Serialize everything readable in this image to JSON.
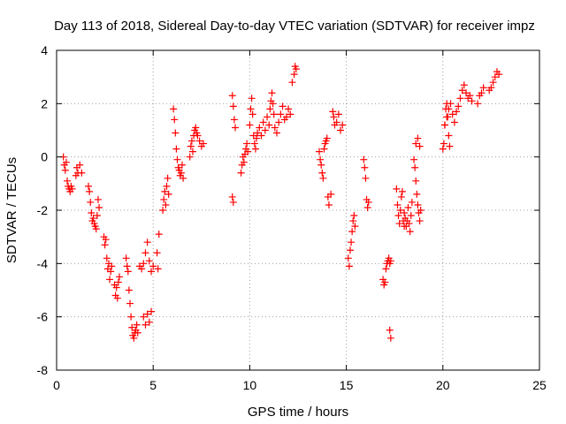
{
  "chart_data": {
    "type": "scatter",
    "title": "Day 113 of 2018, Sidereal Day-to-day VTEC variation (SDTVAR) for receiver impz",
    "xlabel": "GPS time / hours",
    "ylabel": "SDTVAR / TECUs",
    "xlim": [
      0,
      25
    ],
    "ylim": [
      -8,
      4
    ],
    "x_ticks": [
      0,
      5,
      10,
      15,
      20,
      25
    ],
    "y_ticks": [
      -8,
      -6,
      -4,
      -2,
      0,
      2,
      4
    ],
    "x_tick_labels": [
      "0",
      "5",
      "10",
      "15",
      "20",
      "25"
    ],
    "y_tick_labels": [
      "-8",
      "-6",
      "-4",
      "-2",
      "0",
      "2",
      "4"
    ],
    "grid": true,
    "marker": "+",
    "color": "#ff0000",
    "series": [
      {
        "name": "SDTVAR",
        "x": [
          0.35,
          0.4,
          0.45,
          0.5,
          0.55,
          0.6,
          0.65,
          0.7,
          0.75,
          0.8,
          1.0,
          1.05,
          1.1,
          1.2,
          1.3,
          1.65,
          1.7,
          1.75,
          1.8,
          1.85,
          1.9,
          1.95,
          2.0,
          2.05,
          2.1,
          2.15,
          2.2,
          2.45,
          2.5,
          2.55,
          2.6,
          2.65,
          2.7,
          2.75,
          2.8,
          2.85,
          3.0,
          3.05,
          3.1,
          3.15,
          3.2,
          3.25,
          3.6,
          3.65,
          3.7,
          3.75,
          3.8,
          3.85,
          3.9,
          3.95,
          4.0,
          4.05,
          4.1,
          4.15,
          4.2,
          4.3,
          4.4,
          4.5,
          4.6,
          4.7,
          4.8,
          4.9,
          5.0,
          4.5,
          4.6,
          4.7,
          4.8,
          4.9,
          5.2,
          5.25,
          5.3,
          5.5,
          5.55,
          5.6,
          5.65,
          5.7,
          5.75,
          5.8,
          6.05,
          6.1,
          6.15,
          6.2,
          6.25,
          6.3,
          6.35,
          6.4,
          6.45,
          6.5,
          6.55,
          6.9,
          6.95,
          7.0,
          7.05,
          7.1,
          7.15,
          7.2,
          7.25,
          7.3,
          7.4,
          7.5,
          7.6,
          9.1,
          9.15,
          9.2,
          9.25,
          9.1,
          9.15,
          9.55,
          9.6,
          9.65,
          9.7,
          9.75,
          9.8,
          9.85,
          9.9,
          10.0,
          10.05,
          10.1,
          10.15,
          10.2,
          10.25,
          10.3,
          10.35,
          10.4,
          10.5,
          10.6,
          10.7,
          10.8,
          10.9,
          11.0,
          11.05,
          11.1,
          11.15,
          11.2,
          11.25,
          11.3,
          11.4,
          11.5,
          11.6,
          11.7,
          11.8,
          11.9,
          12.0,
          12.1,
          12.2,
          12.3,
          12.35,
          12.4,
          13.6,
          13.65,
          13.7,
          13.75,
          13.8,
          13.85,
          13.9,
          13.95,
          14.0,
          14.05,
          14.1,
          14.2,
          14.3,
          14.35,
          14.4,
          14.5,
          14.6,
          14.7,
          14.8,
          15.1,
          15.15,
          15.2,
          15.25,
          15.3,
          15.35,
          15.4,
          15.45,
          15.9,
          15.95,
          16.0,
          16.05,
          16.1,
          16.15,
          16.9,
          16.95,
          17.0,
          17.05,
          17.1,
          17.15,
          17.2,
          17.25,
          17.3,
          17.25,
          17.3,
          17.6,
          17.65,
          17.7,
          17.75,
          17.8,
          17.85,
          17.9,
          17.95,
          18.0,
          18.0,
          18.05,
          18.1,
          18.15,
          18.2,
          18.25,
          18.3,
          18.35,
          18.4,
          18.5,
          18.55,
          18.6,
          18.65,
          18.7,
          18.75,
          18.8,
          18.85,
          18.6,
          18.7,
          18.8,
          20.0,
          20.05,
          20.1,
          20.15,
          20.2,
          20.25,
          20.3,
          20.35,
          20.1,
          20.2,
          20.3,
          20.4,
          20.5,
          20.6,
          20.7,
          20.8,
          20.9,
          21.0,
          21.1,
          21.2,
          21.3,
          21.4,
          21.5,
          21.8,
          21.9,
          22.0,
          22.1,
          22.4,
          22.5,
          22.6,
          22.7,
          22.8,
          22.9
        ],
        "y": [
          0.0,
          -0.3,
          -0.5,
          -0.2,
          -0.9,
          -1.1,
          -1.2,
          -1.3,
          -1.1,
          -1.2,
          -0.7,
          -0.4,
          -0.6,
          -0.3,
          -0.6,
          -1.1,
          -1.3,
          -1.7,
          -2.1,
          -2.4,
          -2.3,
          -2.5,
          -2.6,
          -2.7,
          -2.2,
          -1.6,
          -1.9,
          -3.0,
          -3.3,
          -3.1,
          -3.8,
          -4.2,
          -4.0,
          -4.6,
          -4.3,
          -4.1,
          -4.8,
          -5.2,
          -4.9,
          -5.3,
          -4.7,
          -4.5,
          -3.8,
          -4.1,
          -4.3,
          -5.0,
          -5.5,
          -6.0,
          -6.4,
          -6.7,
          -6.8,
          -6.6,
          -6.5,
          -6.3,
          -6.6,
          -4.1,
          -4.2,
          -4.0,
          -3.6,
          -3.2,
          -3.9,
          -4.3,
          -4.1,
          -6.0,
          -6.3,
          -5.9,
          -6.2,
          -5.8,
          -3.6,
          -4.2,
          -2.9,
          -2.0,
          -1.6,
          -1.3,
          -1.8,
          -1.1,
          -0.8,
          -1.4,
          1.8,
          1.4,
          0.9,
          0.3,
          -0.1,
          -0.4,
          -0.5,
          -0.7,
          -0.6,
          -0.3,
          -0.8,
          0.0,
          0.4,
          0.6,
          0.2,
          0.8,
          1.0,
          1.1,
          0.9,
          0.8,
          0.6,
          0.4,
          0.5,
          2.3,
          1.9,
          1.4,
          1.1,
          -1.5,
          -1.7,
          -0.6,
          -0.3,
          0.0,
          -0.2,
          0.1,
          0.3,
          0.5,
          0.2,
          1.2,
          1.8,
          2.2,
          1.6,
          0.8,
          0.5,
          0.3,
          0.7,
          0.9,
          1.1,
          0.8,
          1.3,
          1.0,
          1.5,
          1.2,
          1.8,
          2.1,
          2.4,
          2.0,
          1.6,
          1.1,
          0.9,
          1.3,
          1.6,
          1.9,
          1.4,
          1.5,
          1.8,
          1.6,
          2.8,
          3.1,
          3.4,
          3.3,
          0.2,
          -0.1,
          -0.3,
          -0.6,
          -0.8,
          0.3,
          0.5,
          0.6,
          0.7,
          -1.5,
          -1.8,
          -1.4,
          1.7,
          1.5,
          1.2,
          1.3,
          1.6,
          1.0,
          1.2,
          -3.8,
          -4.1,
          -3.5,
          -3.2,
          -2.8,
          -2.4,
          -2.2,
          -2.6,
          -0.1,
          -0.4,
          -0.8,
          -1.6,
          -1.9,
          -1.7,
          -4.6,
          -4.8,
          -4.7,
          -4.2,
          -4.0,
          -3.9,
          -3.8,
          -4.0,
          -3.9,
          -6.5,
          -6.8,
          -1.2,
          -1.8,
          -2.2,
          -2.5,
          -2.0,
          -1.5,
          -1.3,
          -2.4,
          -2.6,
          -2.1,
          -2.3,
          -2.6,
          -2.4,
          -1.9,
          -2.5,
          -2.8,
          -2.2,
          -1.7,
          -0.1,
          -0.4,
          -0.9,
          -1.4,
          -1.8,
          -2.1,
          -2.4,
          -2.0,
          0.5,
          0.7,
          0.4,
          0.3,
          0.5,
          1.2,
          1.8,
          2.0,
          1.5,
          0.8,
          0.4,
          1.2,
          1.5,
          1.8,
          2.0,
          1.6,
          1.3,
          1.7,
          1.9,
          2.2,
          2.5,
          2.7,
          2.4,
          2.2,
          2.3,
          2.1,
          2.0,
          2.3,
          2.4,
          2.6,
          2.5,
          2.6,
          2.8,
          3.0,
          3.2,
          3.1
        ]
      }
    ]
  }
}
